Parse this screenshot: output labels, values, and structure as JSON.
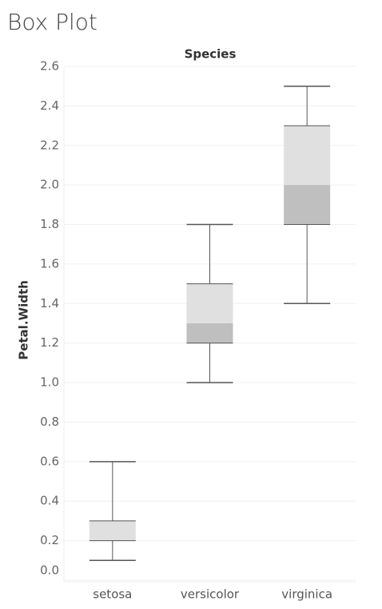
{
  "chart_data": {
    "type": "box",
    "title": "Box Plot",
    "header": "Species",
    "y_label": "Petal.Width",
    "categories": [
      "setosa",
      "versicolor",
      "virginica"
    ],
    "min": [
      0.1,
      1.0,
      1.4
    ],
    "q1": [
      0.2,
      1.2,
      1.8
    ],
    "median": [
      0.2,
      1.3,
      2.0
    ],
    "q3": [
      0.3,
      1.5,
      2.3
    ],
    "max": [
      0.6,
      1.8,
      2.5
    ],
    "upper_box_color": "#e0e0e0",
    "lower_box_color": "#bfbfbf",
    "whisker_color": "#555555",
    "ylim": [
      0,
      2.6
    ],
    "yticks": [
      {
        "value": 0,
        "label": "0.0"
      },
      0.2,
      0.4,
      0.6,
      0.8,
      {
        "value": 1,
        "label": "1.0"
      },
      1.2,
      1.4,
      1.6,
      1.8,
      {
        "value": 2,
        "label": "2.0"
      },
      2.2,
      2.4,
      2.6
    ],
    "grid": true
  }
}
